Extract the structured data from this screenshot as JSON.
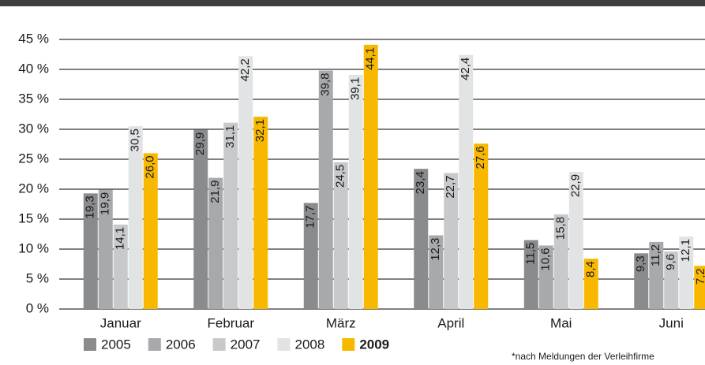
{
  "chart_data": {
    "type": "bar",
    "categories": [
      "Januar",
      "Februar",
      "März",
      "April",
      "Mai",
      "Juni"
    ],
    "series": [
      {
        "name": "2005",
        "color": "#8a8b8d",
        "values": [
          19.3,
          29.9,
          17.7,
          23.4,
          11.5,
          9.3
        ],
        "value_labels": [
          "19,3",
          "29,9",
          "17,7",
          "23,4",
          "11,5",
          "9,3"
        ]
      },
      {
        "name": "2006",
        "color": "#a7a9ac",
        "values": [
          19.9,
          21.9,
          39.8,
          12.3,
          10.6,
          11.2
        ],
        "value_labels": [
          "19,9",
          "21,9",
          "39,8",
          "12,3",
          "10,6",
          "11,2"
        ]
      },
      {
        "name": "2007",
        "color": "#c8c9cb",
        "values": [
          14.1,
          31.1,
          24.5,
          22.7,
          15.8,
          9.6
        ],
        "value_labels": [
          "14,1",
          "31,1",
          "24,5",
          "22,7",
          "15,8",
          "9,6"
        ]
      },
      {
        "name": "2008",
        "color": "#e2e3e5",
        "values": [
          30.5,
          42.2,
          39.1,
          42.4,
          22.9,
          12.1
        ],
        "value_labels": [
          "30,5",
          "42,2",
          "39,1",
          "42,4",
          "22,9",
          "12,1"
        ]
      },
      {
        "name": "2009",
        "color": "#f9b800",
        "values": [
          26.0,
          32.1,
          44.1,
          27.6,
          8.4,
          7.2
        ],
        "value_labels": [
          "26,0",
          "32,1",
          "44,1",
          "27,6",
          "8,4",
          "7,2"
        ]
      }
    ],
    "ylim": [
      0,
      45
    ],
    "yticks": [
      {
        "value": 0,
        "label": "0 %"
      },
      {
        "value": 5,
        "label": "5 %"
      },
      {
        "value": 10,
        "label": "10 %"
      },
      {
        "value": 15,
        "label": "15 %"
      },
      {
        "value": 20,
        "label": "20 %"
      },
      {
        "value": 25,
        "label": "25 %"
      },
      {
        "value": 30,
        "label": "30 %"
      },
      {
        "value": 35,
        "label": "35 %"
      },
      {
        "value": 40,
        "label": "40 %"
      },
      {
        "value": 45,
        "label": "45 %"
      }
    ],
    "grid": true,
    "footnote": "*nach Meldungen der Verleihfirme"
  }
}
